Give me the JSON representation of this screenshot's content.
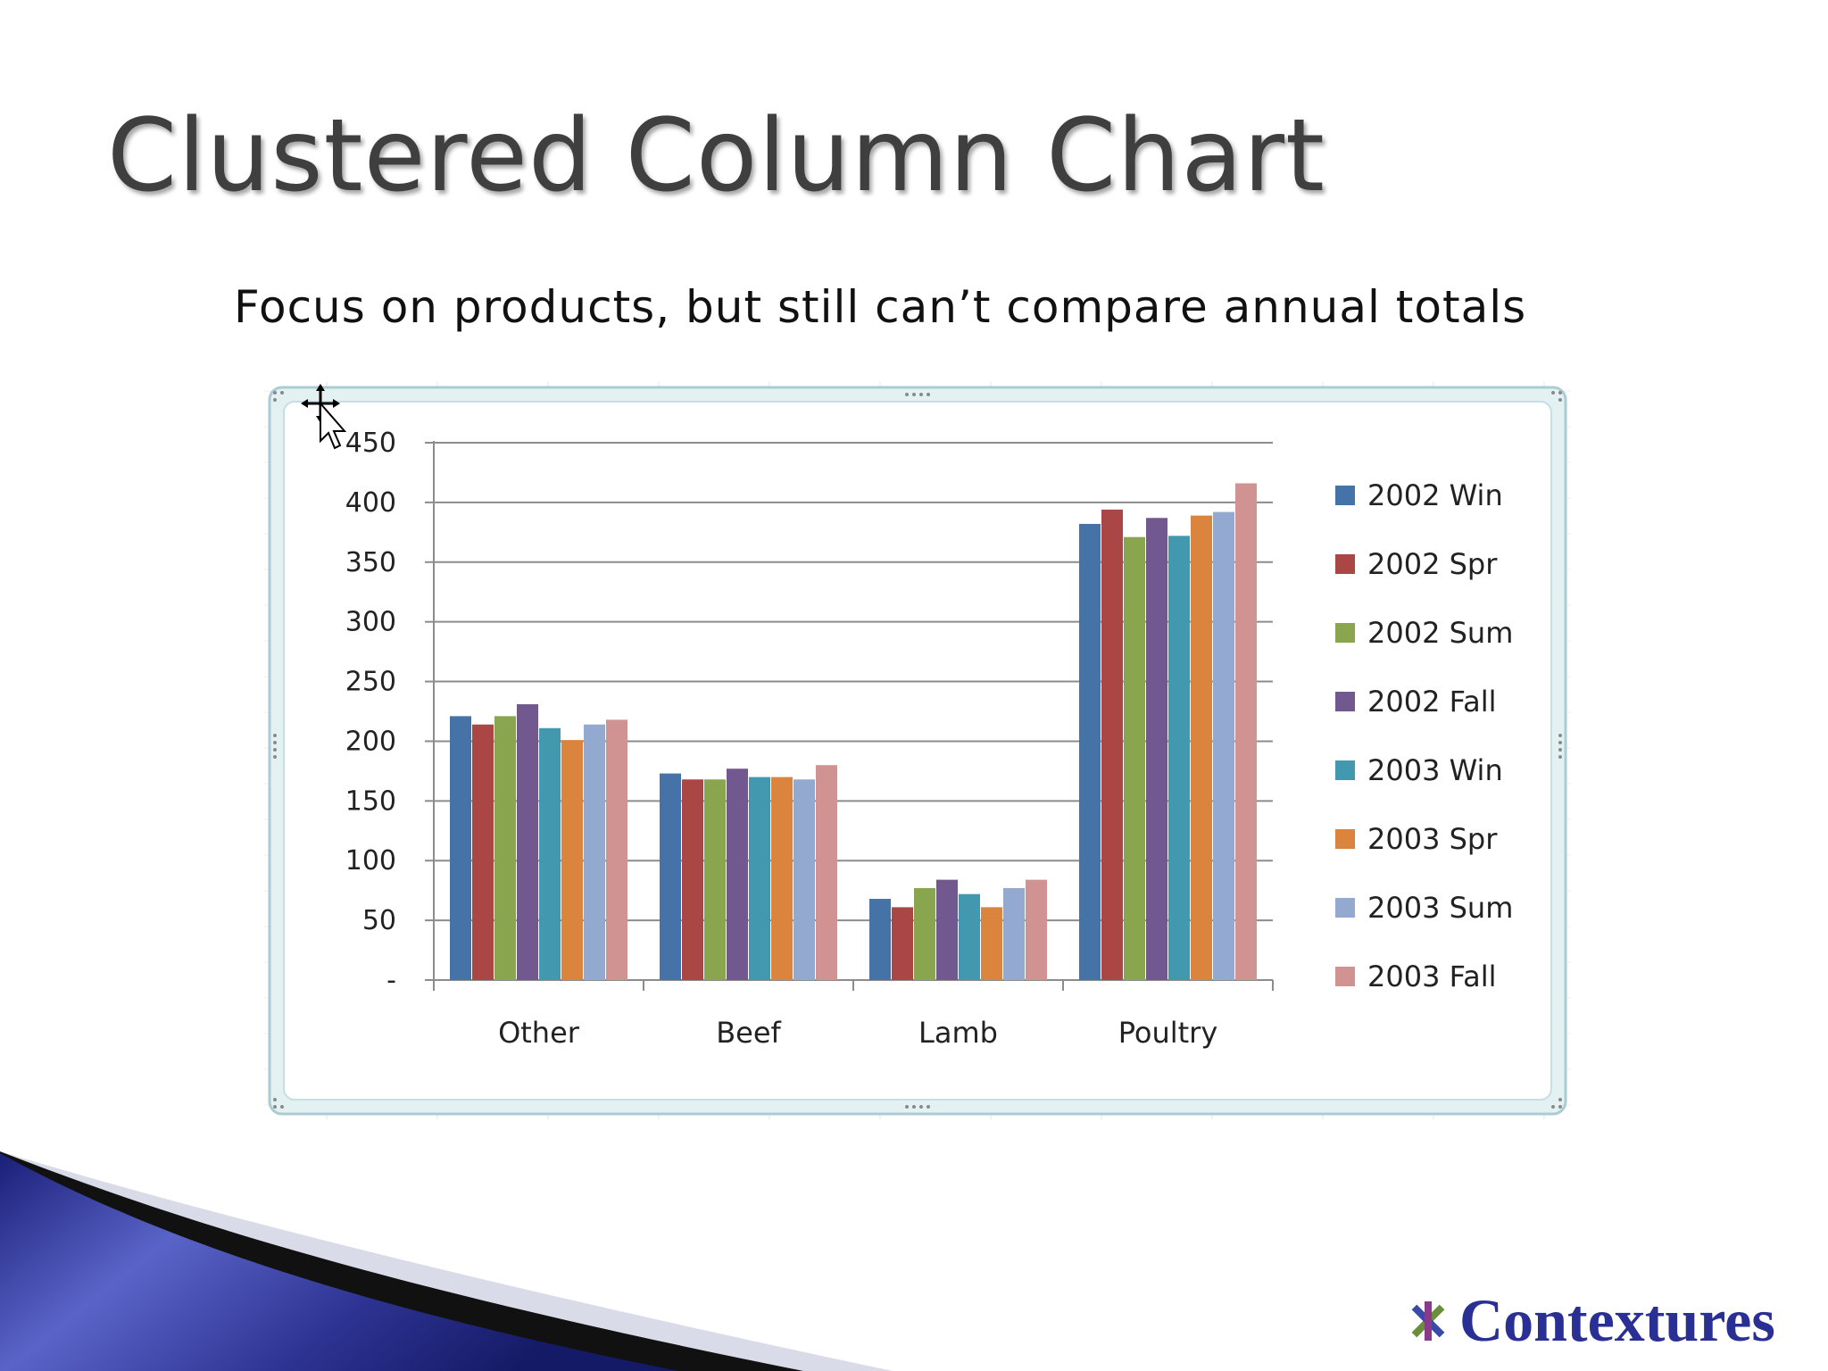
{
  "slide": {
    "title": "Clustered Column Chart",
    "subtitle": "Focus on products, but still can’t compare annual totals"
  },
  "logo": {
    "text": "Contextures",
    "icon": "asterisk-star-icon",
    "color": "#2a2f94"
  },
  "chart_data": {
    "type": "bar",
    "categories": [
      "Other",
      "Beef",
      "Lamb",
      "Poultry"
    ],
    "series": [
      {
        "name": "2002 Win",
        "color": "#4572a7",
        "values": [
          221,
          173,
          68,
          382
        ]
      },
      {
        "name": "2002 Spr",
        "color": "#aa4643",
        "values": [
          214,
          168,
          61,
          394
        ]
      },
      {
        "name": "2002 Sum",
        "color": "#89a54e",
        "values": [
          221,
          168,
          77,
          371
        ]
      },
      {
        "name": "2002 Fall",
        "color": "#71588f",
        "values": [
          231,
          177,
          84,
          387
        ]
      },
      {
        "name": "2003 Win",
        "color": "#4198af",
        "values": [
          211,
          170,
          72,
          372
        ]
      },
      {
        "name": "2003 Spr",
        "color": "#db843d",
        "values": [
          201,
          170,
          61,
          389
        ]
      },
      {
        "name": "2003 Sum",
        "color": "#93a9cf",
        "values": [
          214,
          168,
          77,
          392
        ]
      },
      {
        "name": "2003 Fall",
        "color": "#d19392",
        "values": [
          218,
          180,
          84,
          416
        ]
      }
    ],
    "ylim": [
      0,
      450
    ],
    "yticks": [
      0,
      50,
      100,
      150,
      200,
      250,
      300,
      350,
      400,
      450
    ],
    "ytick_labels": [
      "-",
      "50",
      "100",
      "150",
      "200",
      "250",
      "300",
      "350",
      "400",
      "450"
    ],
    "grid": true,
    "legend_position": "right",
    "xlabel": "",
    "ylabel": ""
  }
}
